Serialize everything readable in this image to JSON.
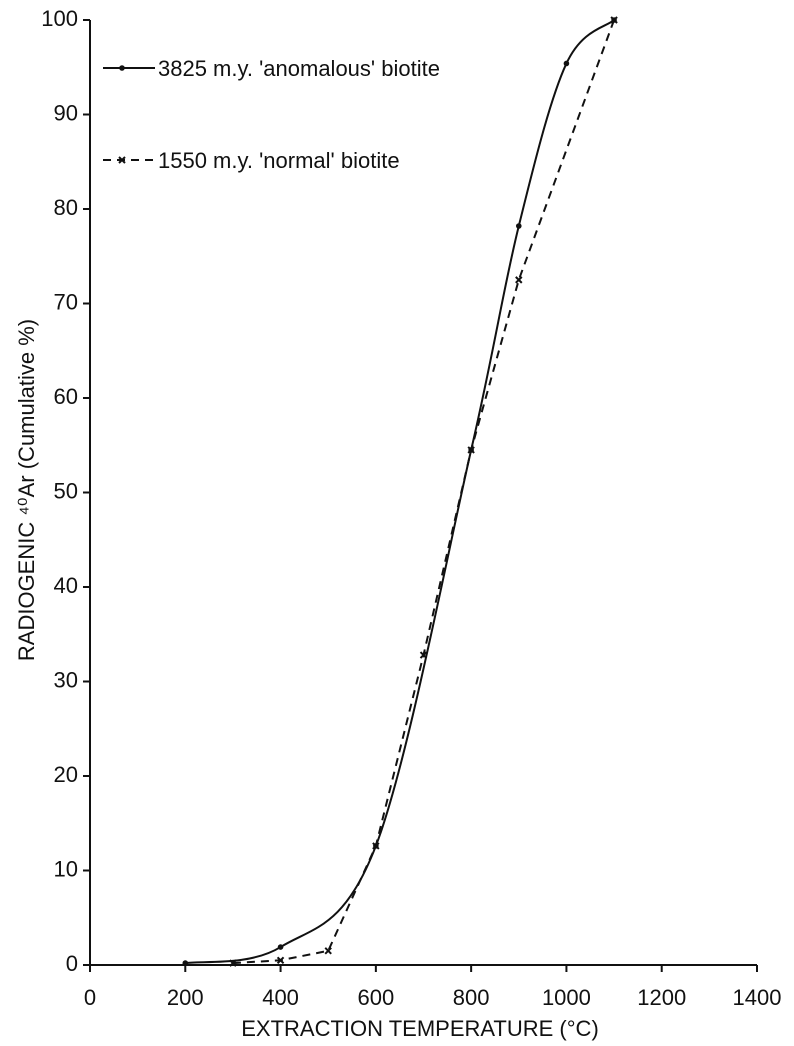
{
  "chart_data": {
    "type": "line",
    "xlabel": "EXTRACTION TEMPERATURE (°C)",
    "ylabel": "RADIOGENIC ⁴⁰Ar   (Cumulative %)",
    "xlim": [
      0,
      1400
    ],
    "xticks": [
      0,
      200,
      400,
      600,
      800,
      1000,
      1200,
      1400
    ],
    "ylim": [
      0,
      100
    ],
    "yticks": [
      0,
      10,
      20,
      30,
      40,
      50,
      60,
      70,
      80,
      90,
      100
    ],
    "series": [
      {
        "name": "3825 m.y. 'anomalous' biotite",
        "color": "#111111",
        "line_style": "solid",
        "marker": "dot",
        "x": [
          200,
          400,
          600,
          800,
          900,
          1000,
          1100
        ],
        "values": [
          0.2,
          1.9,
          12.6,
          54.5,
          78.2,
          95.4,
          100
        ]
      },
      {
        "name": "1550 m.y. 'normal' biotite",
        "color": "#111111",
        "line_style": "dashed",
        "marker": "cross",
        "x": [
          300,
          400,
          500,
          600,
          700,
          800,
          900,
          1100
        ],
        "values": [
          0.2,
          0.5,
          1.5,
          12.6,
          32.8,
          54.5,
          72.5,
          100
        ]
      }
    ]
  }
}
